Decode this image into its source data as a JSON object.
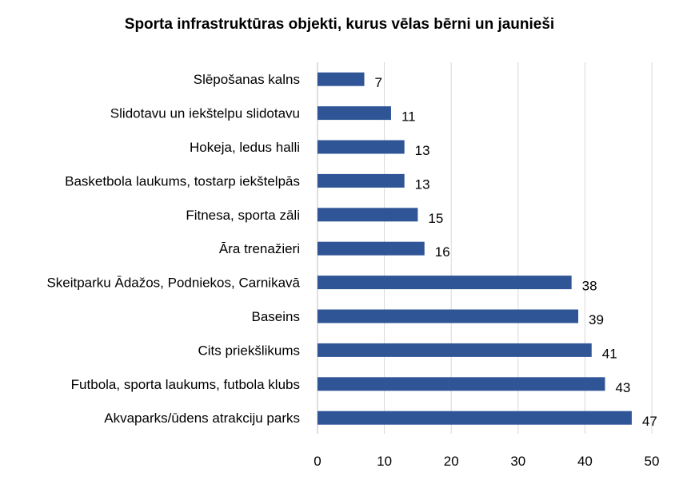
{
  "chart_data": {
    "type": "bar",
    "orientation": "horizontal",
    "title": "Sporta infrastruktūras objekti, kurus vēlas bērni un jaunieši",
    "categories": [
      "Slēpošanas kalns",
      "Slidotavu un iekštelpu slidotavu",
      "Hokeja, ledus halli",
      "Basketbola laukums, tostarp iekštelpās",
      "Fitnesa, sporta zāli",
      "Āra trenažieri ",
      "Skeitparku Ādažos, Podniekos, Carnikavā",
      "Baseins",
      "Cits priekšlikums",
      "Futbola, sporta laukums, futbola klubs",
      "Akvaparks/ūdens atrakciju parks"
    ],
    "values": [
      7,
      11,
      13,
      13,
      15,
      16,
      38,
      39,
      41,
      43,
      47
    ],
    "xlim": [
      0,
      50
    ],
    "xticks": [
      0,
      10,
      20,
      30,
      40,
      50
    ],
    "grid": "vertical",
    "legend": "none",
    "bar_color": "#2F5597",
    "grid_color": "#D9D9D9",
    "data_labels": true
  }
}
